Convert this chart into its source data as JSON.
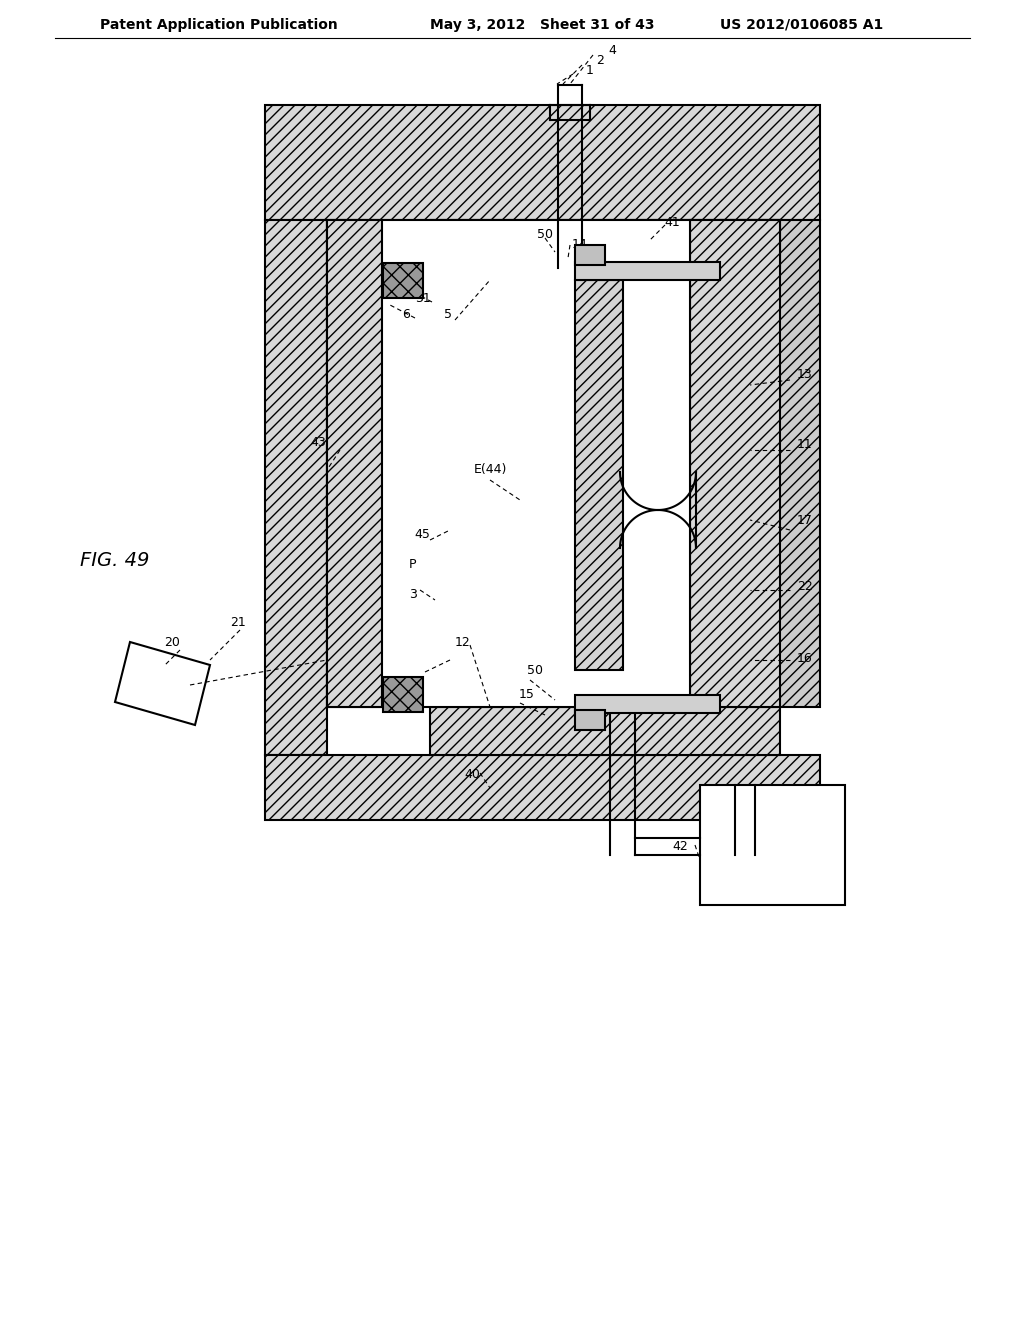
{
  "bg_color": "#ffffff",
  "line_color": "#000000",
  "header_left": "Patent Application Publication",
  "header_mid": "May 3, 2012   Sheet 31 of 43",
  "header_right": "US 2012/0106085 A1",
  "fig_label": "FIG. 49"
}
